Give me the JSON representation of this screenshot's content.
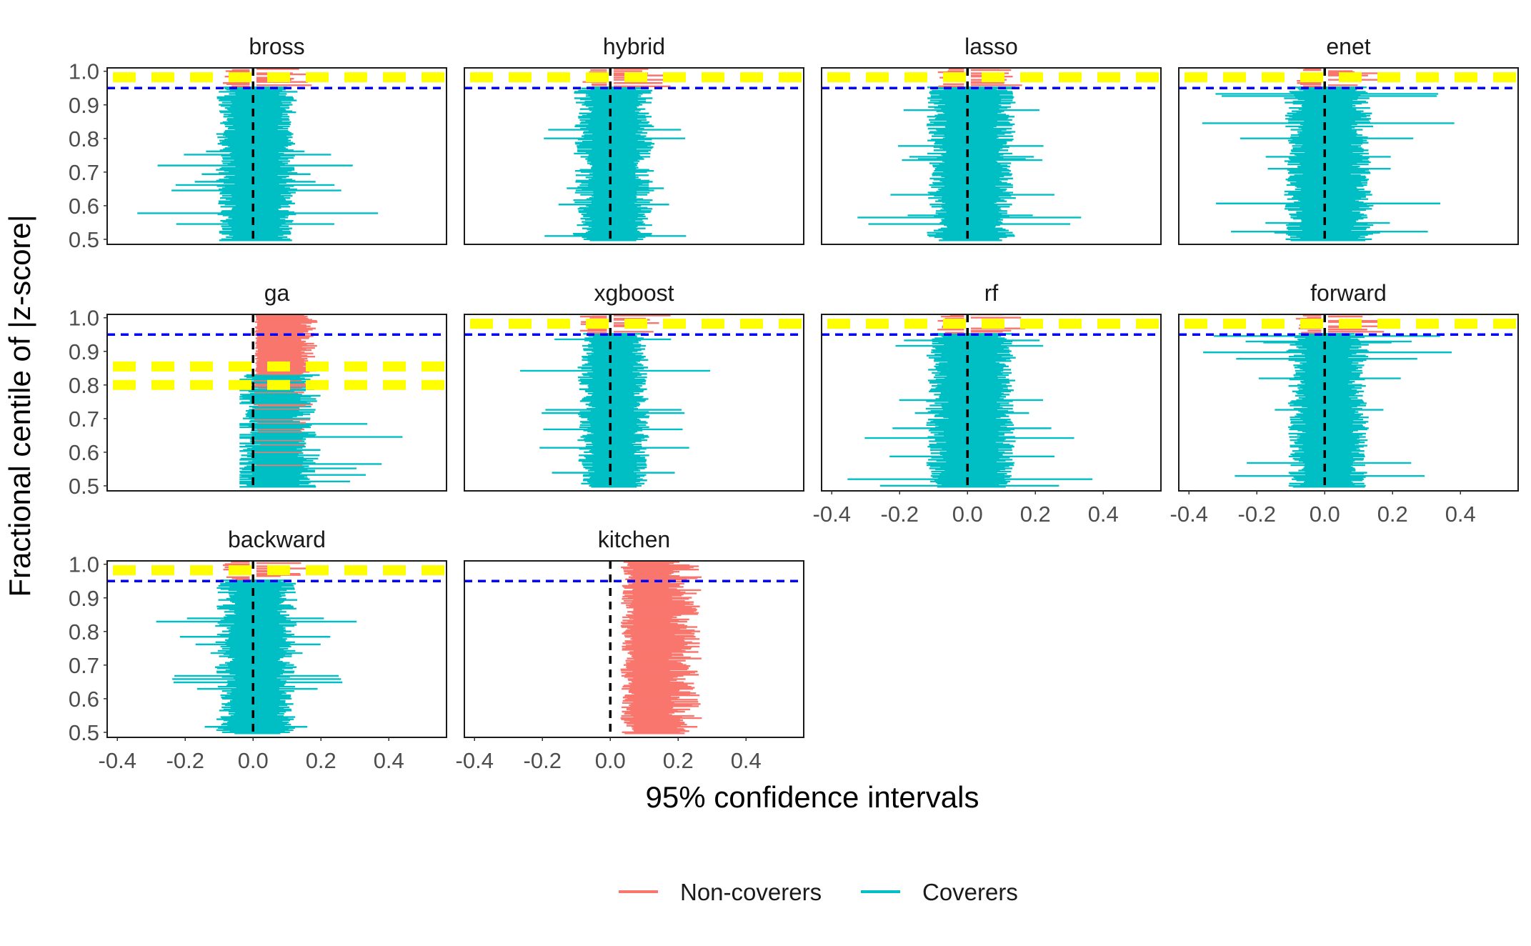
{
  "chart_data": {
    "type": "interval",
    "xlabel": "95% confidence intervals",
    "ylabel": "Fractional centile of |z-score|",
    "xlim": [
      -0.43,
      0.57
    ],
    "ylim": [
      0.485,
      1.01
    ],
    "x_ticks": [
      -0.4,
      -0.2,
      0.0,
      0.2,
      0.4
    ],
    "x_tick_labels": [
      "-0.4",
      "-0.2",
      "0.0",
      "0.2",
      "0.4"
    ],
    "y_ticks": [
      0.5,
      0.6,
      0.7,
      0.8,
      0.9,
      1.0
    ],
    "y_tick_labels": [
      "0.5",
      "0.6",
      "0.7",
      "0.8",
      "0.9",
      "1.0"
    ],
    "reference_lines": {
      "vertical_x": 0.0,
      "horizontal_y": 0.95
    },
    "legend": [
      {
        "label": "Non-coverers",
        "color": "#F8766D"
      },
      {
        "label": "Coverers",
        "color": "#00BFC4"
      }
    ],
    "colors": {
      "non_coverers": "#F8766D",
      "coverers": "#00BFC4",
      "vline": "#000000",
      "hline": "#0000FF",
      "highlight": "#FFFF00"
    },
    "facets": [
      {
        "name": "bross",
        "mode": "cover",
        "shift": 0.02,
        "width": 0.09,
        "cross": 0.955,
        "highlight": [
          0.982
        ]
      },
      {
        "name": "hybrid",
        "mode": "cover",
        "shift": 0.02,
        "width": 0.09,
        "cross": 0.955,
        "highlight": [
          0.982
        ]
      },
      {
        "name": "lasso",
        "mode": "cover",
        "shift": 0.02,
        "width": 0.1,
        "cross": 0.955,
        "highlight": [
          0.982
        ]
      },
      {
        "name": "enet",
        "mode": "cover",
        "shift": 0.02,
        "width": 0.1,
        "cross": 0.955,
        "highlight": [
          0.982
        ]
      },
      {
        "name": "ga",
        "mode": "ga",
        "shift": 0.08,
        "width": 0.09,
        "cross": 0.83,
        "highlight": [
          0.855,
          0.8
        ]
      },
      {
        "name": "xgboost",
        "mode": "cover",
        "shift": 0.02,
        "width": 0.08,
        "cross": 0.955,
        "highlight": [
          0.982
        ]
      },
      {
        "name": "rf",
        "mode": "cover",
        "shift": 0.02,
        "width": 0.1,
        "cross": 0.955,
        "highlight": [
          0.982
        ]
      },
      {
        "name": "forward",
        "mode": "cover",
        "shift": 0.02,
        "width": 0.09,
        "cross": 0.955,
        "highlight": [
          0.982
        ]
      },
      {
        "name": "backward",
        "mode": "cover",
        "shift": 0.02,
        "width": 0.09,
        "cross": 0.955,
        "highlight": [
          0.982
        ]
      },
      {
        "name": "kitchen",
        "mode": "kitchen",
        "shift": 0.14,
        "width": 0.07,
        "cross": 0.0,
        "highlight": []
      }
    ]
  }
}
